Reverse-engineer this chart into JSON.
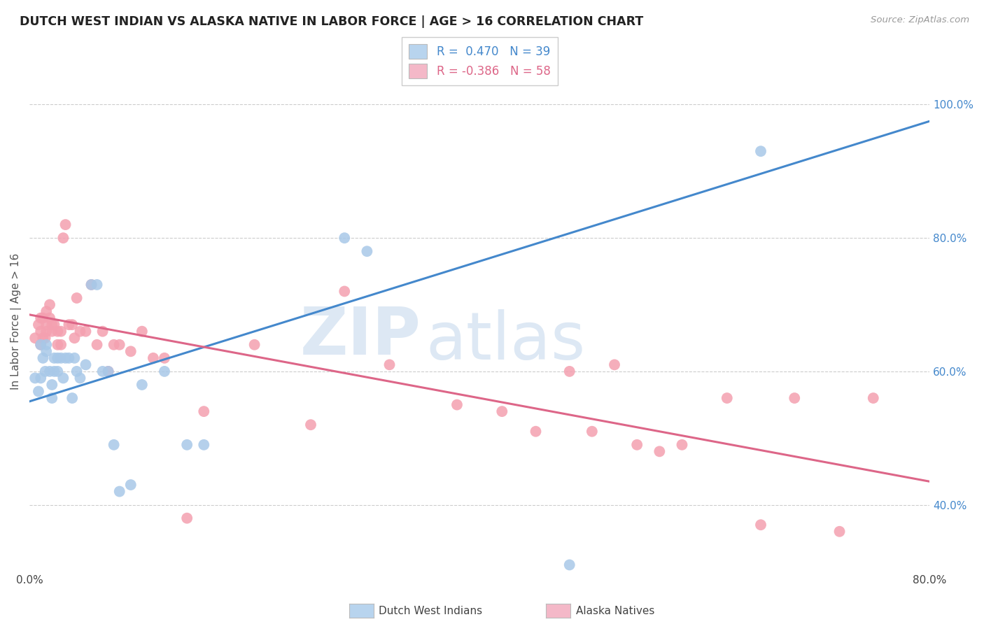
{
  "title": "DUTCH WEST INDIAN VS ALASKA NATIVE IN LABOR FORCE | AGE > 16 CORRELATION CHART",
  "source": "Source: ZipAtlas.com",
  "ylabel": "In Labor Force | Age > 16",
  "xlim": [
    0.0,
    0.8
  ],
  "ylim": [
    0.3,
    1.05
  ],
  "ytick_labels_right": [
    "40.0%",
    "60.0%",
    "80.0%",
    "100.0%"
  ],
  "ytick_positions_right": [
    0.4,
    0.6,
    0.8,
    1.0
  ],
  "blue_R": 0.47,
  "blue_N": 39,
  "pink_R": -0.386,
  "pink_N": 58,
  "blue_scatter_color": "#a8c8e8",
  "pink_scatter_color": "#f4a0b0",
  "blue_line_color": "#4488cc",
  "pink_line_color": "#dd6688",
  "legend_blue_fill": "#b8d4ee",
  "legend_pink_fill": "#f4b8c8",
  "blue_line_x0": 0.0,
  "blue_line_y0": 0.555,
  "blue_line_x1": 0.8,
  "blue_line_y1": 0.975,
  "pink_line_x0": 0.0,
  "pink_line_y0": 0.685,
  "pink_line_x1": 0.8,
  "pink_line_y1": 0.435,
  "blue_points_x": [
    0.005,
    0.008,
    0.01,
    0.01,
    0.012,
    0.014,
    0.015,
    0.015,
    0.018,
    0.02,
    0.02,
    0.022,
    0.022,
    0.025,
    0.025,
    0.028,
    0.03,
    0.032,
    0.035,
    0.038,
    0.04,
    0.042,
    0.045,
    0.05,
    0.055,
    0.06,
    0.065,
    0.07,
    0.075,
    0.08,
    0.09,
    0.1,
    0.12,
    0.14,
    0.155,
    0.28,
    0.3,
    0.48,
    0.65
  ],
  "blue_points_y": [
    0.59,
    0.57,
    0.64,
    0.59,
    0.62,
    0.6,
    0.63,
    0.64,
    0.6,
    0.56,
    0.58,
    0.6,
    0.62,
    0.6,
    0.62,
    0.62,
    0.59,
    0.62,
    0.62,
    0.56,
    0.62,
    0.6,
    0.59,
    0.61,
    0.73,
    0.73,
    0.6,
    0.6,
    0.49,
    0.42,
    0.43,
    0.58,
    0.6,
    0.49,
    0.49,
    0.8,
    0.78,
    0.31,
    0.93
  ],
  "pink_points_x": [
    0.005,
    0.008,
    0.01,
    0.01,
    0.01,
    0.012,
    0.012,
    0.014,
    0.015,
    0.015,
    0.015,
    0.018,
    0.018,
    0.02,
    0.02,
    0.022,
    0.025,
    0.025,
    0.028,
    0.028,
    0.03,
    0.032,
    0.035,
    0.038,
    0.04,
    0.042,
    0.045,
    0.05,
    0.055,
    0.06,
    0.065,
    0.07,
    0.075,
    0.08,
    0.09,
    0.1,
    0.11,
    0.12,
    0.14,
    0.155,
    0.2,
    0.25,
    0.28,
    0.32,
    0.38,
    0.42,
    0.45,
    0.48,
    0.5,
    0.52,
    0.54,
    0.56,
    0.58,
    0.62,
    0.65,
    0.68,
    0.72,
    0.75
  ],
  "pink_points_y": [
    0.65,
    0.67,
    0.64,
    0.66,
    0.68,
    0.65,
    0.68,
    0.65,
    0.66,
    0.67,
    0.69,
    0.68,
    0.7,
    0.66,
    0.67,
    0.67,
    0.64,
    0.66,
    0.64,
    0.66,
    0.8,
    0.82,
    0.67,
    0.67,
    0.65,
    0.71,
    0.66,
    0.66,
    0.73,
    0.64,
    0.66,
    0.6,
    0.64,
    0.64,
    0.63,
    0.66,
    0.62,
    0.62,
    0.38,
    0.54,
    0.64,
    0.52,
    0.72,
    0.61,
    0.55,
    0.54,
    0.51,
    0.6,
    0.51,
    0.61,
    0.49,
    0.48,
    0.49,
    0.56,
    0.37,
    0.56,
    0.36,
    0.56
  ],
  "background_color": "#ffffff",
  "grid_color": "#cccccc",
  "watermark_zip": "ZIP",
  "watermark_atlas": "atlas",
  "watermark_color": "#dde8f4"
}
